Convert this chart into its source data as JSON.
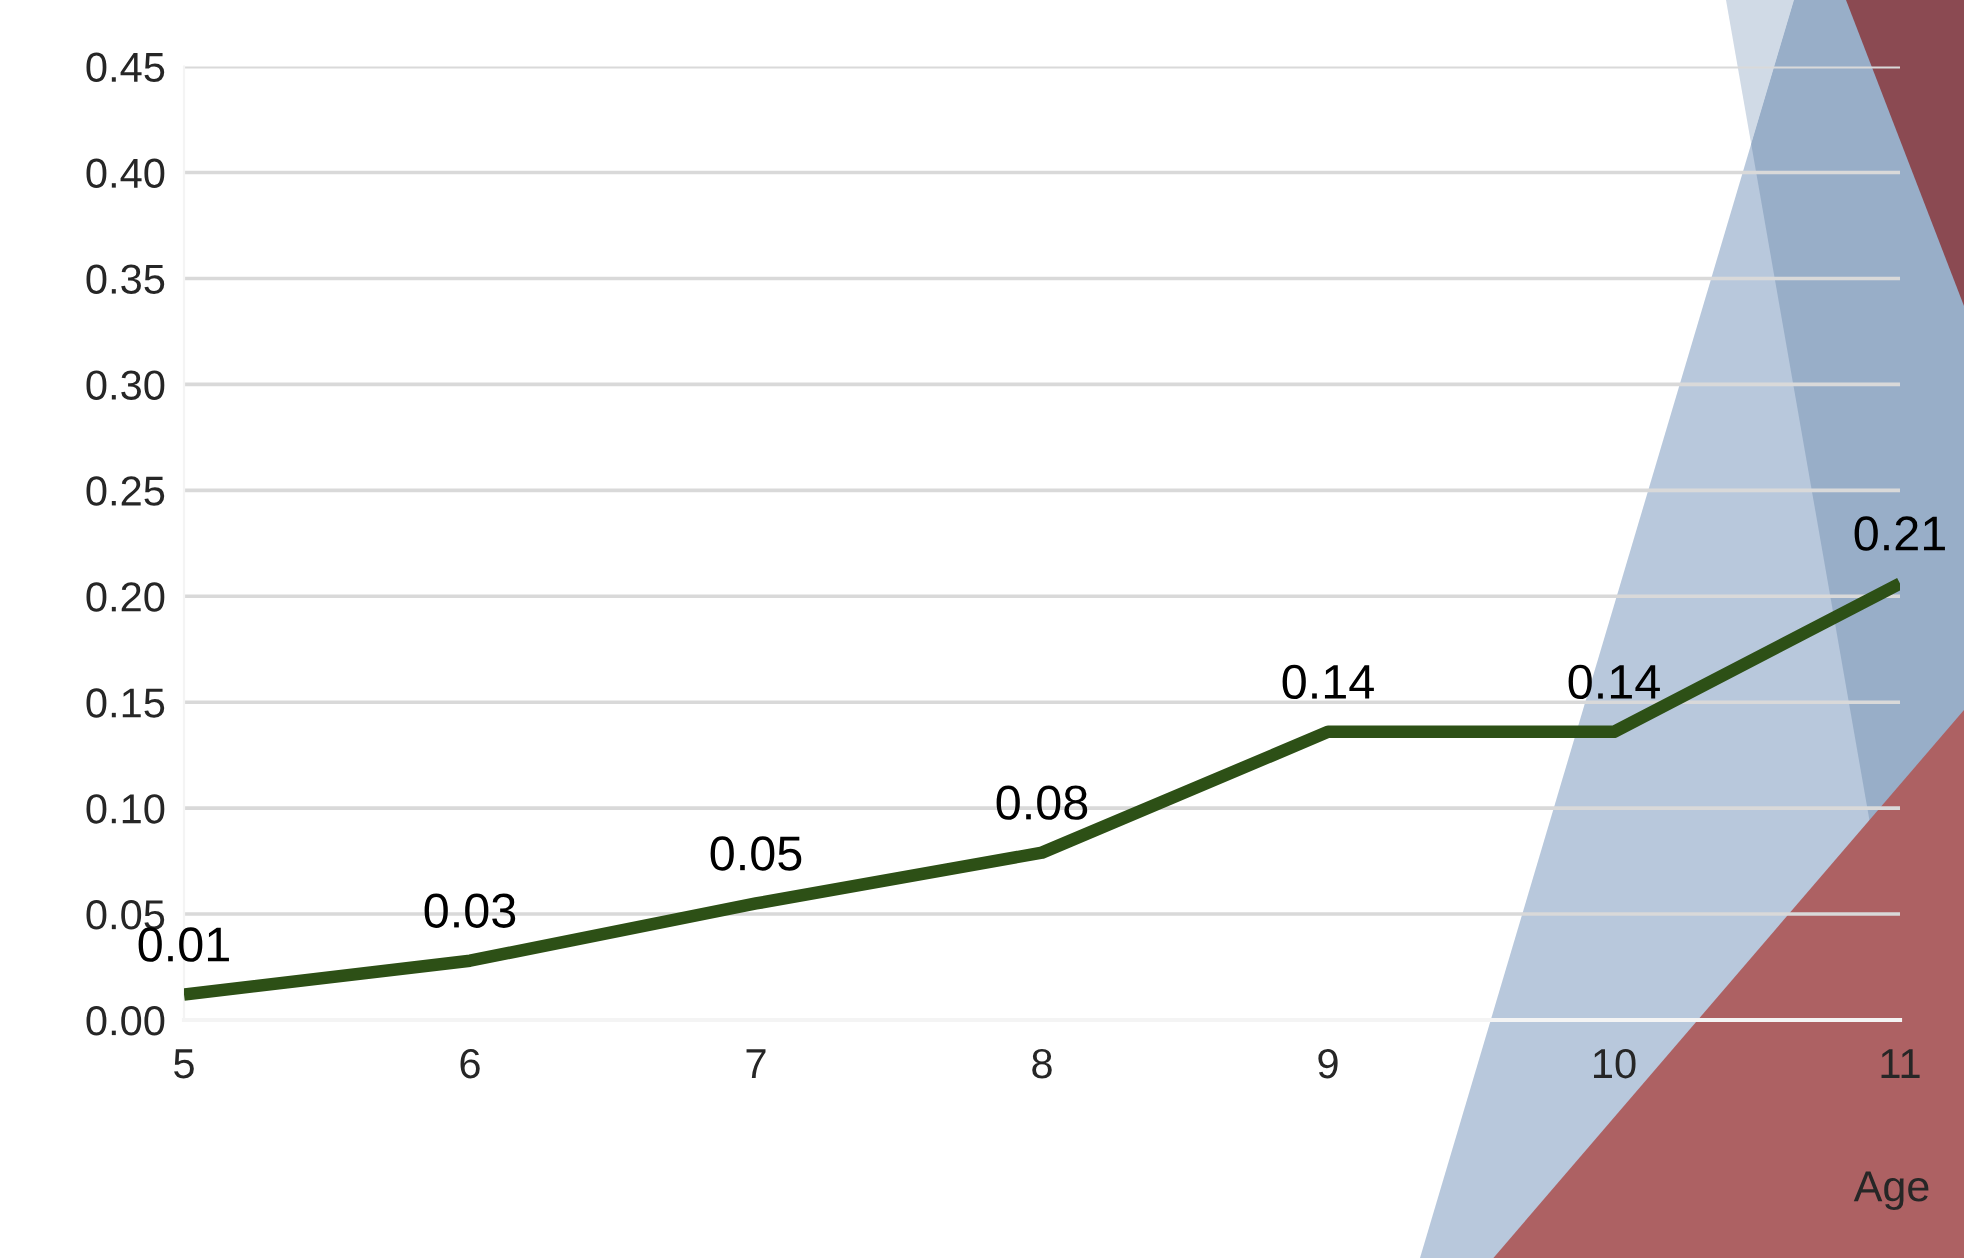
{
  "chart_data": {
    "type": "line",
    "xlabel": "Age",
    "categories": [
      "5",
      "6",
      "7",
      "8",
      "9",
      "10",
      "11"
    ],
    "series": [
      {
        "color": "#2d5016",
        "values": [
          0.012,
          0.028,
          0.055,
          0.079,
          0.136,
          0.136,
          0.206
        ],
        "value_labels": [
          "0.01",
          "0.03",
          "0.05",
          "0.08",
          "0.14",
          "0.14",
          "0.21"
        ]
      }
    ],
    "ylim": [
      0,
      0.45
    ],
    "yticks": [
      {
        "value": 0,
        "label": "0.00"
      },
      {
        "value": 0.05,
        "label": "0.05"
      },
      {
        "value": 0.1,
        "label": "0.10"
      },
      {
        "value": 0.15,
        "label": "0.15"
      },
      {
        "value": 0.2,
        "label": "0.20"
      },
      {
        "value": 0.25,
        "label": "0.25"
      },
      {
        "value": 0.3,
        "label": "0.30"
      },
      {
        "value": 0.35,
        "label": "0.35"
      },
      {
        "value": 0.4,
        "label": "0.40"
      },
      {
        "value": 0.45,
        "label": "0.45"
      }
    ],
    "grid": "y",
    "line_style": "solid"
  }
}
